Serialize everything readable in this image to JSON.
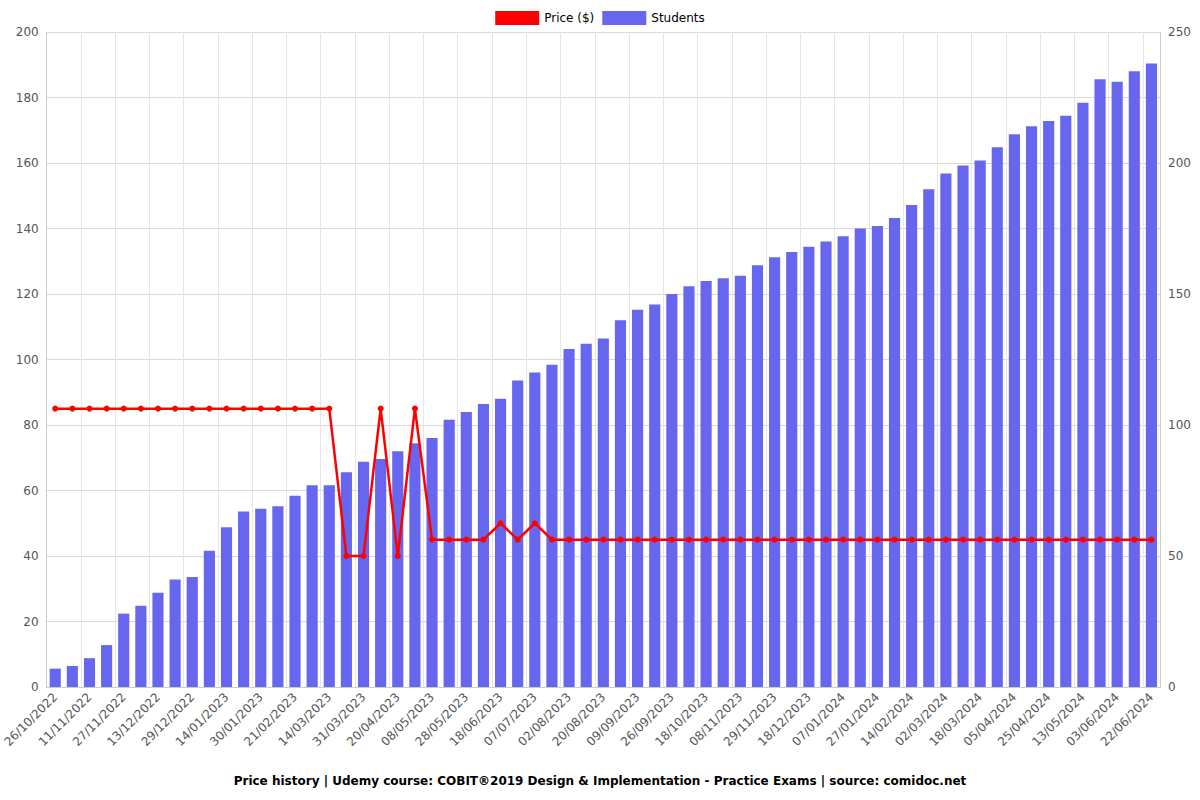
{
  "chart_data": {
    "type": "bar",
    "title": "Price history | Udemy course: COBIT®2019 Design & Implementation - Practice Exams | source: comidoc.net",
    "categories": [
      "26/10/2022",
      null,
      "11/11/2022",
      null,
      "27/11/2022",
      null,
      "13/12/2022",
      null,
      "29/12/2022",
      null,
      "14/01/2023",
      null,
      "30/01/2023",
      null,
      "21/02/2023",
      null,
      "14/03/2023",
      null,
      "31/03/2023",
      null,
      "20/04/2023",
      null,
      "08/05/2023",
      null,
      "28/05/2023",
      null,
      "18/06/2023",
      null,
      "07/07/2023",
      null,
      "02/08/2023",
      null,
      "20/08/2023",
      null,
      "09/09/2023",
      null,
      "26/09/2023",
      null,
      "18/10/2023",
      null,
      "08/11/2023",
      null,
      "29/11/2023",
      null,
      "18/12/2023",
      null,
      "07/01/2024",
      null,
      "27/01/2024",
      null,
      "14/02/2024",
      null,
      "02/03/2024",
      null,
      "18/03/2024",
      null,
      "05/04/2024",
      null,
      "25/04/2024",
      null,
      "13/05/2024",
      null,
      "03/06/2024",
      null,
      "22/06/2024"
    ],
    "series": [
      {
        "name": "Price ($)",
        "type": "line",
        "color": "#ff0000",
        "marker": "circle",
        "values": [
          85,
          85,
          85,
          85,
          85,
          85,
          85,
          85,
          85,
          85,
          85,
          85,
          85,
          85,
          85,
          85,
          85,
          40,
          40,
          85,
          40,
          85,
          45,
          45,
          45,
          45,
          50,
          45,
          50,
          45,
          45,
          45,
          45,
          45,
          45,
          45,
          45,
          45,
          45,
          45,
          45,
          45,
          45,
          45,
          45,
          45,
          45,
          45,
          45,
          45,
          45,
          45,
          45,
          45,
          45,
          45,
          45,
          45,
          45,
          45,
          45,
          45,
          45,
          45,
          45
        ]
      },
      {
        "name": "Students",
        "type": "bar",
        "color": "#6666ee",
        "axis": "y2",
        "values": [
          7,
          8,
          11,
          16,
          28,
          31,
          36,
          41,
          42,
          52,
          61,
          67,
          68,
          69,
          73,
          77,
          77,
          82,
          86,
          87,
          90,
          93,
          95,
          102,
          105,
          108,
          110,
          117,
          120,
          123,
          129,
          131,
          133,
          140,
          144,
          146,
          150,
          153,
          155,
          156,
          157,
          161,
          164,
          166,
          168,
          170,
          172,
          175,
          176,
          179,
          184,
          190,
          196,
          199,
          201,
          206,
          211,
          214,
          216,
          218,
          223,
          232,
          231,
          235,
          238
        ]
      }
    ],
    "ylim": [
      0,
      200
    ],
    "yticks": [
      0,
      20,
      40,
      60,
      80,
      100,
      120,
      140,
      160,
      180,
      200
    ],
    "y2lim": [
      0,
      250
    ],
    "y2ticks": [
      0,
      50,
      100,
      150,
      200,
      250
    ],
    "grid": true,
    "legend": "top"
  }
}
